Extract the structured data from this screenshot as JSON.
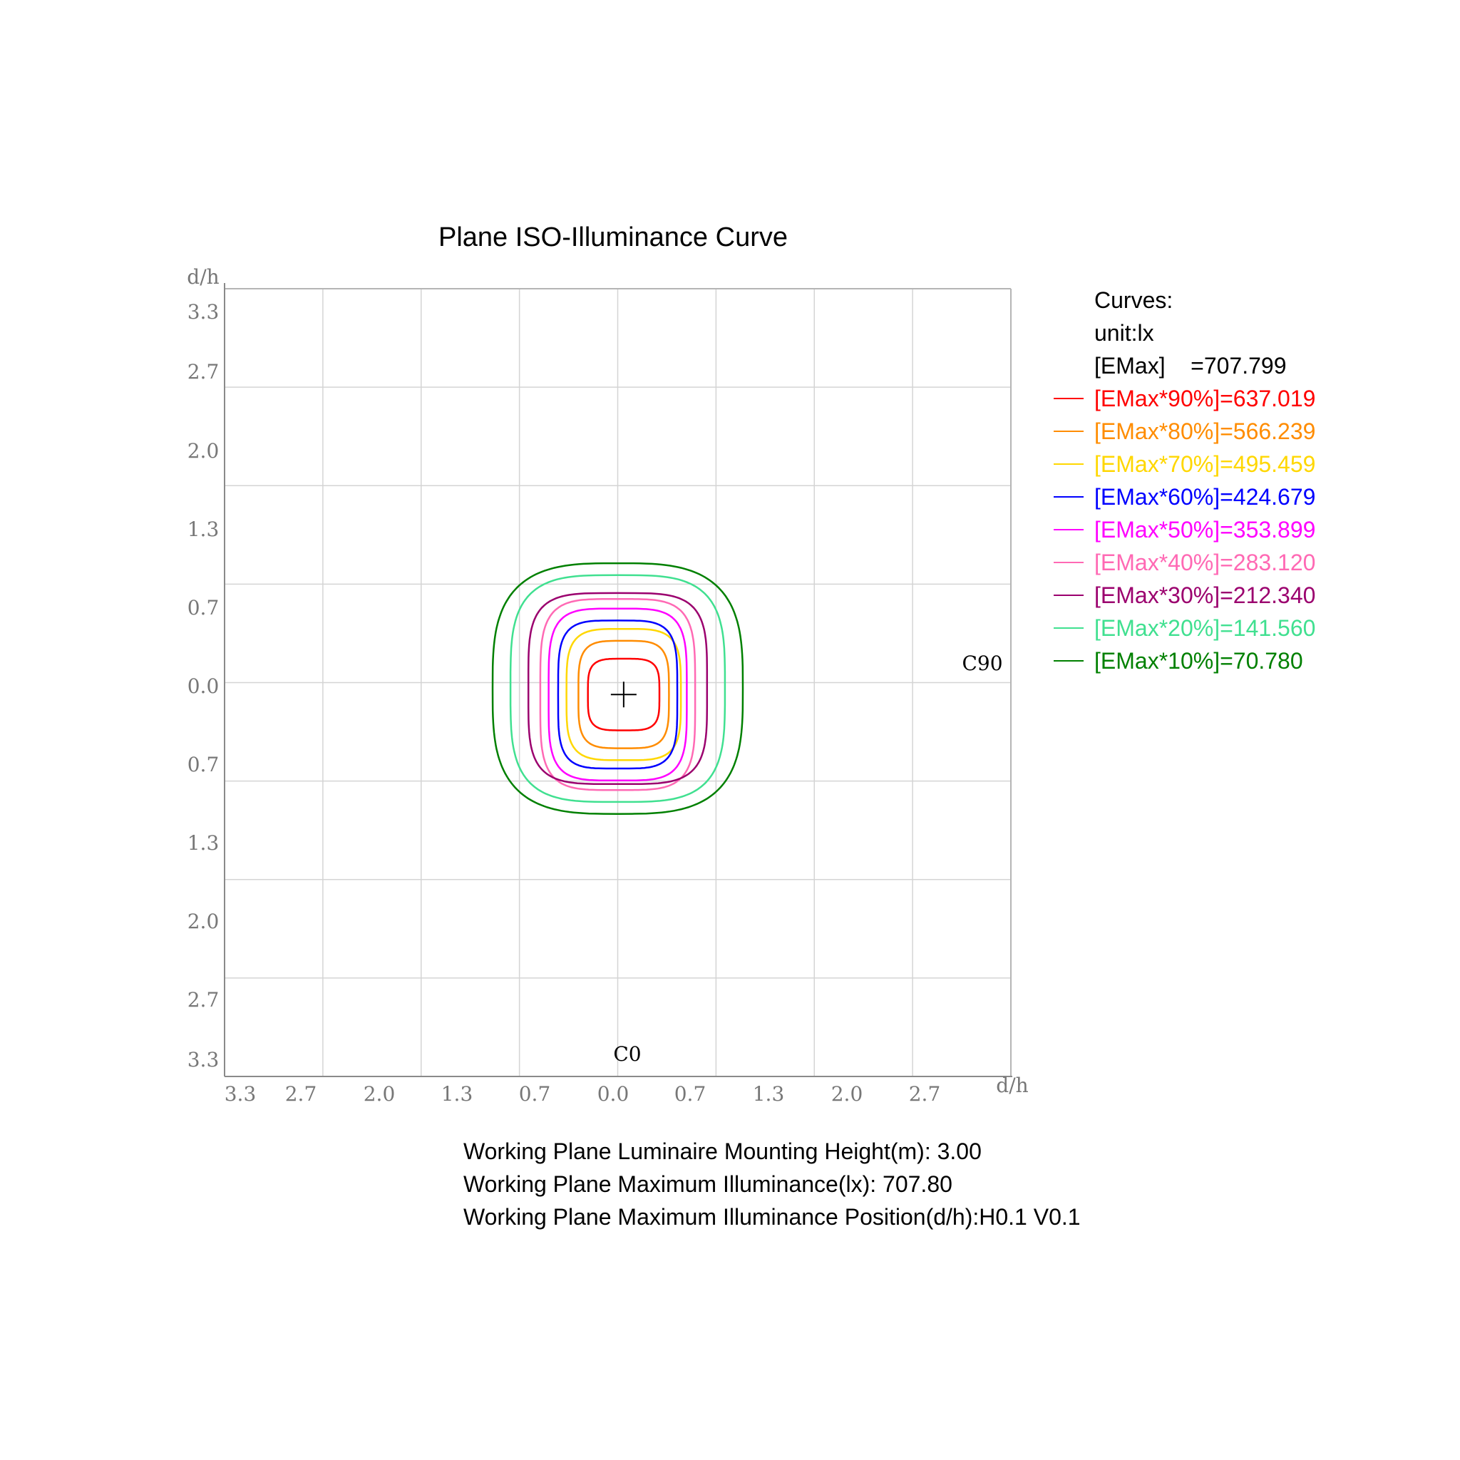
{
  "chart_data": {
    "type": "contour",
    "title": "Plane ISO-Illuminance Curve",
    "xlabel": "d/h",
    "ylabel": "d/h",
    "xlim": [
      -3.3,
      3.3
    ],
    "ylim": [
      -3.3,
      3.3
    ],
    "grid": true,
    "x_ticks": [
      "3.3",
      "2.7",
      "2.0",
      "1.3",
      "0.7",
      "0.0",
      "0.7",
      "1.3",
      "2.0",
      "2.7"
    ],
    "y_ticks": [
      "3.3",
      "2.7",
      "2.0",
      "1.3",
      "0.7",
      "0.0",
      "0.7",
      "1.3",
      "2.0",
      "2.7",
      "3.3"
    ],
    "c90_label": "C90",
    "c0_label": "C0",
    "center_marker": [
      0.05,
      -0.1
    ],
    "legend": {
      "position": "right",
      "header": "Curves:",
      "unit": "unit:lx",
      "emax": "[EMax]    =707.799"
    },
    "series": [
      {
        "name": "[EMax*90%]=637.019",
        "color": "#ff0000",
        "center": [
          0.05,
          -0.1
        ],
        "half_width": 0.3,
        "half_height": 0.3,
        "exponent": 4.0
      },
      {
        "name": "[EMax*80%]=566.239",
        "color": "#ff8c00",
        "center": [
          0.05,
          -0.1
        ],
        "half_width": 0.38,
        "half_height": 0.45,
        "exponent": 4.0
      },
      {
        "name": "[EMax*70%]=495.459",
        "color": "#ffd700",
        "center": [
          0.05,
          -0.1
        ],
        "half_width": 0.48,
        "half_height": 0.55,
        "exponent": 4.0
      },
      {
        "name": "[EMax*60%]=424.679",
        "color": "#0000ff",
        "center": [
          0.0,
          -0.1
        ],
        "half_width": 0.5,
        "half_height": 0.62,
        "exponent": 4.2
      },
      {
        "name": "[EMax*50%]=353.899",
        "color": "#ff00ff",
        "center": [
          0.0,
          -0.1
        ],
        "half_width": 0.58,
        "half_height": 0.72,
        "exponent": 4.2
      },
      {
        "name": "[EMax*40%]=283.120",
        "color": "#ff69b4",
        "center": [
          0.0,
          -0.1
        ],
        "half_width": 0.65,
        "half_height": 0.8,
        "exponent": 4.2
      },
      {
        "name": "[EMax*30%]=212.340",
        "color": "#9b006e",
        "center": [
          0.0,
          -0.05
        ],
        "half_width": 0.75,
        "half_height": 0.8,
        "exponent": 4.2
      },
      {
        "name": "[EMax*20%]=141.560",
        "color": "#40e090",
        "center": [
          0.0,
          -0.05
        ],
        "half_width": 0.9,
        "half_height": 0.95,
        "exponent": 3.6
      },
      {
        "name": "[EMax*10%]=70.780",
        "color": "#008000",
        "center": [
          0.0,
          -0.05
        ],
        "half_width": 1.05,
        "half_height": 1.05,
        "exponent": 3.2
      }
    ]
  },
  "footer": {
    "line1": "Working Plane Luminaire Mounting Height(m): 3.00",
    "line2": "Working Plane Maximum Illuminance(lx): 707.80",
    "line3": "Working Plane Maximum Illuminance Position(d/h):H0.1 V0.1"
  }
}
